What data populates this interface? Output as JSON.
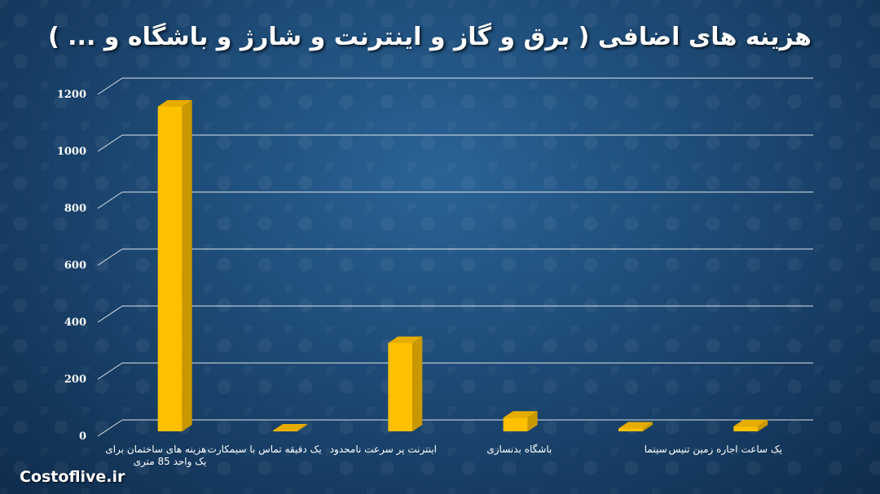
{
  "title": "هزینه های اضافی ( برق و گاز و اینترنت و شارژ و باشگاه و ... )",
  "brand": "Costoflive.ir",
  "chart_data": {
    "type": "bar",
    "categories": [
      [
        "هزینه های ساختمان برای",
        "یک واحد 85 متری"
      ],
      [
        "یک دقیقه تماس با سیمکارت"
      ],
      [
        "اینترنت پر سرعت نامحدود"
      ],
      [
        "باشگاه بدنسازی"
      ],
      [
        "سینما"
      ],
      [
        "یک ساعت اجاره زمین تنیس"
      ]
    ],
    "values": [
      1140,
      0.5,
      310,
      48,
      10,
      18
    ],
    "ylim": [
      0,
      1200
    ],
    "yticks": [
      0,
      200,
      400,
      600,
      800,
      1000,
      1200
    ],
    "grid": true,
    "bar_color": "#ffc000",
    "bar_side_color": "#c99700",
    "bar_top_color": "#e6ad00"
  }
}
